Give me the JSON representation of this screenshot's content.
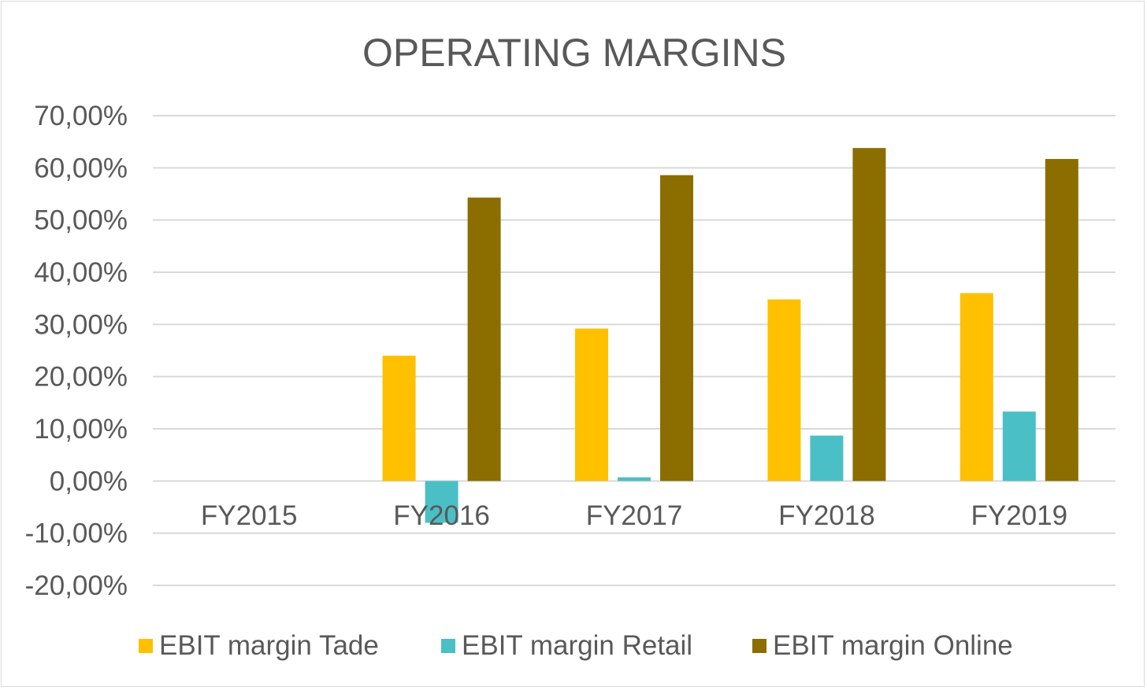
{
  "chart_data": {
    "type": "bar",
    "title": "OPERATING MARGINS",
    "xlabel": "",
    "ylabel": "",
    "categories": [
      "FY2015",
      "FY2016",
      "FY2017",
      "FY2018",
      "FY2019"
    ],
    "series": [
      {
        "name": "EBIT margin Tade",
        "color": "#ffc000",
        "values": [
          0,
          24.0,
          29.2,
          34.8,
          36.0
        ]
      },
      {
        "name": "EBIT margin Retail",
        "color": "#4bbfc6",
        "values": [
          0,
          -8.0,
          0.7,
          8.7,
          13.3
        ]
      },
      {
        "name": "EBIT margin Online",
        "color": "#8c6d00",
        "values": [
          0,
          54.3,
          58.6,
          63.8,
          61.7
        ]
      }
    ],
    "y_ticks": [
      "70,00%",
      "60,00%",
      "50,00%",
      "40,00%",
      "30,00%",
      "20,00%",
      "10,00%",
      "0,00%",
      "-10,00%",
      "-20,00%"
    ],
    "ylim": [
      -20,
      70
    ],
    "y_step": 10,
    "grid": true,
    "legend_position": "bottom",
    "colors": {
      "gridline": "#d9d9d9",
      "text": "#595959",
      "border": "#d9d9d9"
    }
  }
}
